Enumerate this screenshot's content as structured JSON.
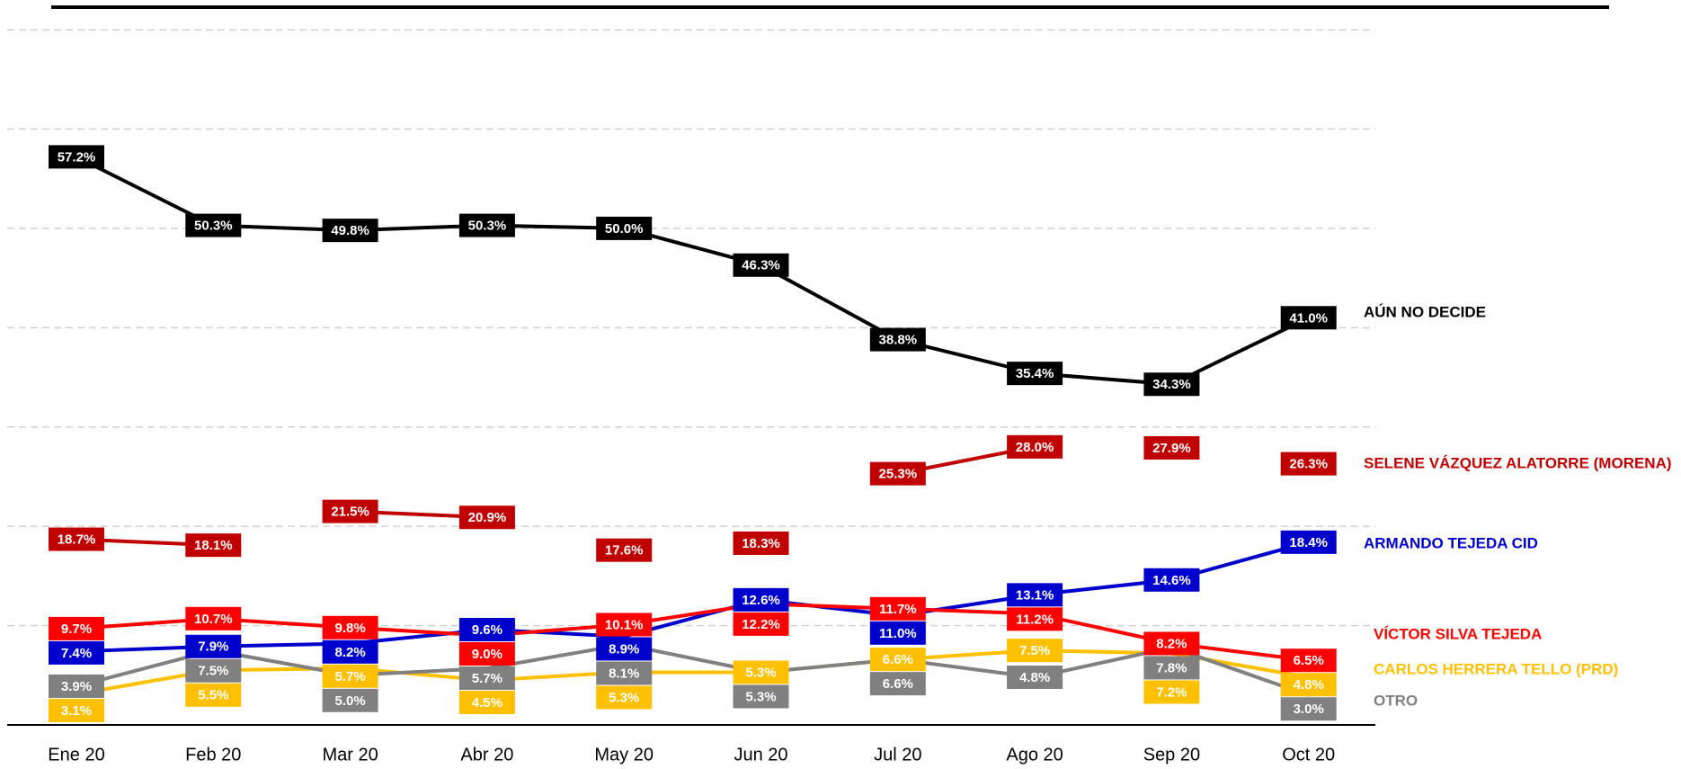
{
  "chart_data": {
    "type": "line",
    "categories": [
      "Ene 20",
      "Feb 20",
      "Mar 20",
      "Abr 20",
      "May 20",
      "Jun 20",
      "Jul 20",
      "Ago 20",
      "Sep 20",
      "Oct 20"
    ],
    "ylim": [
      0,
      72
    ],
    "gridlines": [
      10,
      20,
      30,
      40,
      50,
      60,
      70
    ],
    "series": [
      {
        "name": "AÚN NO DECIDE",
        "color": "#000000",
        "values": [
          57.2,
          50.3,
          49.8,
          50.3,
          50.0,
          46.3,
          38.8,
          35.4,
          34.3,
          41.0
        ],
        "value_labels": [
          "57.2%",
          "50.3%",
          "49.8%",
          "50.3%",
          "50.0%",
          "46.3%",
          "38.8%",
          "35.4%",
          "34.3%",
          "41.0%"
        ]
      },
      {
        "name": "SELENE VÁZQUEZ ALATORRE (MORENA)",
        "color": "#c00000",
        "values": [
          18.7,
          18.1,
          21.5,
          20.9,
          17.6,
          18.3,
          25.3,
          28.0,
          27.9,
          26.3
        ],
        "value_labels": [
          "18.7%",
          "18.1%",
          "21.5%",
          "20.9%",
          "17.6%",
          "18.3%",
          "25.3%",
          "28.0%",
          "27.9%",
          "26.3%"
        ],
        "breaks_after": [
          1,
          3,
          4,
          5,
          7,
          8
        ]
      },
      {
        "name": "ARMANDO TEJEDA CID",
        "color": "#0000cc",
        "values": [
          7.4,
          7.9,
          8.2,
          9.6,
          8.9,
          12.6,
          11.0,
          13.1,
          14.6,
          18.4
        ],
        "value_labels": [
          "7.4%",
          "7.9%",
          "8.2%",
          "9.6%",
          "8.9%",
          "12.6%",
          "11.0%",
          "13.1%",
          "14.6%",
          "18.4%"
        ]
      },
      {
        "name": "VÍCTOR SILVA TEJEDA",
        "color": "#ff0000",
        "values": [
          9.7,
          10.7,
          9.8,
          9.0,
          10.1,
          12.2,
          11.7,
          11.2,
          8.2,
          6.5
        ],
        "value_labels": [
          "9.7%",
          "10.7%",
          "9.8%",
          "9.0%",
          "10.1%",
          "12.2%",
          "11.7%",
          "11.2%",
          "8.2%",
          "6.5%"
        ]
      },
      {
        "name": "CARLOS HERRERA TELLO (PRD)",
        "color": "#ffc000",
        "values": [
          3.1,
          5.5,
          5.7,
          4.5,
          5.3,
          5.3,
          6.6,
          7.5,
          7.2,
          4.8
        ],
        "value_labels": [
          "3.1%",
          "5.5%",
          "5.7%",
          "4.5%",
          "5.3%",
          "5.3%",
          "6.6%",
          "7.5%",
          "7.2%",
          "4.8%"
        ]
      },
      {
        "name": "OTRO",
        "color": "#808080",
        "values": [
          3.9,
          7.5,
          5.0,
          5.7,
          8.1,
          5.3,
          6.6,
          4.8,
          7.8,
          3.0
        ],
        "value_labels": [
          "3.9%",
          "7.5%",
          "5.0%",
          "5.7%",
          "8.1%",
          "5.3%",
          "6.6%",
          "4.8%",
          "7.8%",
          "3.0%"
        ]
      }
    ]
  }
}
